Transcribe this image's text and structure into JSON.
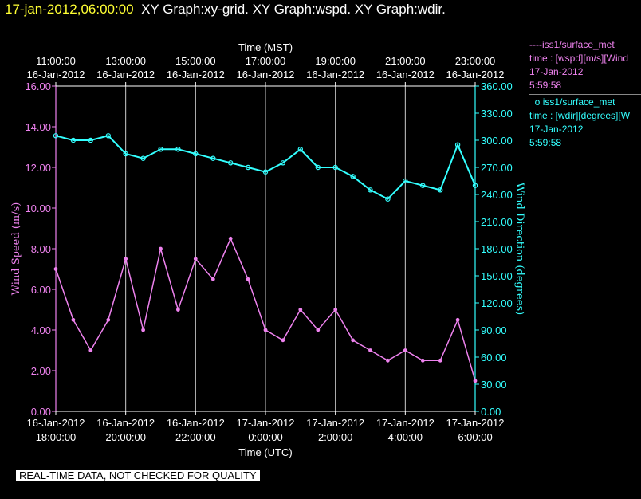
{
  "header": {
    "timestamp": "17-jan-2012,06:00:00",
    "graphs": "XY Graph:xy-grid.  XY Graph:wspd.  XY Graph:wdir."
  },
  "legend": {
    "wspd": {
      "marker": "----",
      "name": "iss1/surface_met",
      "var": "time : [wspd][m/s][Wind",
      "date": "17-Jan-2012",
      "time": "5:59:58"
    },
    "wdir": {
      "marker": "o",
      "name": "iss1/surface_met",
      "var": "time : [wdir][degrees][W",
      "date": "17-Jan-2012",
      "time": "5:59:58"
    }
  },
  "footer": "REAL-TIME DATA, NOT CHECKED FOR QUALITY",
  "chart_data": {
    "type": "line",
    "top_axis": {
      "label": "Time (MST)",
      "ticks": [
        {
          "date": "16-Jan-2012",
          "time": "11:00:00"
        },
        {
          "date": "16-Jan-2012",
          "time": "13:00:00"
        },
        {
          "date": "16-Jan-2012",
          "time": "15:00:00"
        },
        {
          "date": "16-Jan-2012",
          "time": "17:00:00"
        },
        {
          "date": "16-Jan-2012",
          "time": "19:00:00"
        },
        {
          "date": "16-Jan-2012",
          "time": "21:00:00"
        },
        {
          "date": "16-Jan-2012",
          "time": "23:00:00"
        }
      ]
    },
    "bottom_axis": {
      "label": "Time (UTC)",
      "ticks": [
        {
          "date": "16-Jan-2012",
          "time": "18:00:00"
        },
        {
          "date": "16-Jan-2012",
          "time": "20:00:00"
        },
        {
          "date": "16-Jan-2012",
          "time": "22:00:00"
        },
        {
          "date": "17-Jan-2012",
          "time": "0:00:00"
        },
        {
          "date": "17-Jan-2012",
          "time": "2:00:00"
        },
        {
          "date": "17-Jan-2012",
          "time": "4:00:00"
        },
        {
          "date": "17-Jan-2012",
          "time": "6:00:00"
        }
      ],
      "range": [
        "2012-01-16 18:00",
        "2012-01-17 06:00"
      ]
    },
    "left_axis": {
      "label": "Wind Speed (m/s)",
      "ylim": [
        0,
        16
      ],
      "ticks": [
        "0.00",
        "2.00",
        "4.00",
        "6.00",
        "8.00",
        "10.00",
        "12.00",
        "14.00",
        "16.00"
      ]
    },
    "right_axis": {
      "label": "Wind Direction (degrees)",
      "ylim": [
        0,
        360
      ],
      "ticks": [
        "0.00",
        "30.00",
        "60.00",
        "90.00",
        "120.00",
        "150.00",
        "180.00",
        "210.00",
        "240.00",
        "270.00",
        "300.00",
        "330.00",
        "360.00"
      ]
    },
    "grid": "vertical",
    "series": [
      {
        "name": "iss1/surface_met wspd",
        "color": "#ee82ee",
        "axis": "left",
        "x": [
          "2012-01-16 18:00",
          "2012-01-16 18:30",
          "2012-01-16 19:00",
          "2012-01-16 19:30",
          "2012-01-16 20:00",
          "2012-01-16 20:30",
          "2012-01-16 21:00",
          "2012-01-16 21:30",
          "2012-01-16 22:00",
          "2012-01-16 22:30",
          "2012-01-16 23:00",
          "2012-01-16 23:30",
          "2012-01-17 00:00",
          "2012-01-17 00:30",
          "2012-01-17 01:00",
          "2012-01-17 01:30",
          "2012-01-17 02:00",
          "2012-01-17 02:30",
          "2012-01-17 03:00",
          "2012-01-17 03:30",
          "2012-01-17 04:00",
          "2012-01-17 04:30",
          "2012-01-17 05:00",
          "2012-01-17 05:30",
          "2012-01-17 06:00"
        ],
        "values": [
          7.0,
          4.5,
          3.0,
          4.5,
          7.5,
          4.0,
          8.0,
          5.0,
          7.5,
          6.5,
          8.5,
          6.5,
          4.0,
          3.5,
          5.0,
          4.0,
          5.0,
          3.5,
          3.0,
          2.5,
          3.0,
          2.5,
          2.5,
          4.5,
          1.5
        ]
      },
      {
        "name": "iss1/surface_met wdir",
        "color": "#33ffff",
        "axis": "right",
        "x": [
          "2012-01-16 18:00",
          "2012-01-16 18:30",
          "2012-01-16 19:00",
          "2012-01-16 19:30",
          "2012-01-16 20:00",
          "2012-01-16 20:30",
          "2012-01-16 21:00",
          "2012-01-16 21:30",
          "2012-01-16 22:00",
          "2012-01-16 22:30",
          "2012-01-16 23:00",
          "2012-01-16 23:30",
          "2012-01-17 00:00",
          "2012-01-17 00:30",
          "2012-01-17 01:00",
          "2012-01-17 01:30",
          "2012-01-17 02:00",
          "2012-01-17 02:30",
          "2012-01-17 03:00",
          "2012-01-17 03:30",
          "2012-01-17 04:00",
          "2012-01-17 04:30",
          "2012-01-17 05:00",
          "2012-01-17 05:30",
          "2012-01-17 06:00"
        ],
        "values": [
          305,
          300,
          300,
          305,
          285,
          280,
          290,
          290,
          285,
          280,
          275,
          270,
          265,
          275,
          290,
          270,
          270,
          260,
          245,
          235,
          255,
          250,
          245,
          295,
          250
        ]
      }
    ]
  }
}
